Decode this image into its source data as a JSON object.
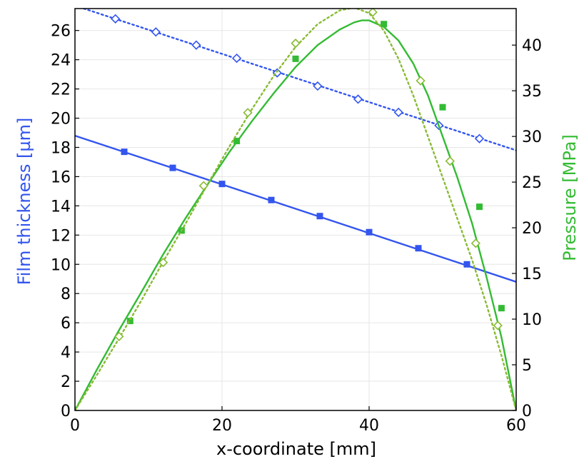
{
  "chart_data": {
    "type": "line",
    "xlabel": "x-coordinate [mm]",
    "ylabel_left": "Film thickness [µm]",
    "ylabel_right": "Pressure [MPa]",
    "xlim": [
      0,
      60
    ],
    "ylim_left": [
      0,
      27.5
    ],
    "ylim_right": [
      0,
      44
    ],
    "x_ticks": [
      "0",
      "20",
      "40",
      "60"
    ],
    "y_left_ticks": [
      "0",
      "2",
      "4",
      "6",
      "8",
      "10",
      "12",
      "14",
      "16",
      "18",
      "20",
      "22",
      "24",
      "26"
    ],
    "y_right_ticks": [
      "0",
      "5",
      "10",
      "15",
      "20",
      "25",
      "30",
      "35",
      "40"
    ],
    "grid": true,
    "colors": {
      "film_thickness": "#3355ee",
      "pressure_solid": "#33bb33",
      "pressure_dotted": "#88bb33"
    },
    "series": [
      {
        "axis": "left",
        "style": "solid",
        "marker": "square",
        "color_key": "film_thickness",
        "line": [
          [
            0,
            18.8
          ],
          [
            60,
            8.8
          ]
        ],
        "markers": [
          [
            6.7,
            17.7
          ],
          [
            13.3,
            16.6
          ],
          [
            20,
            15.5
          ],
          [
            26.7,
            14.4
          ],
          [
            33.3,
            13.3
          ],
          [
            40,
            12.2
          ],
          [
            46.7,
            11.1
          ],
          [
            53.3,
            10.0
          ]
        ]
      },
      {
        "axis": "left",
        "style": "dotted",
        "marker": "diamond",
        "color_key": "film_thickness",
        "line": [
          [
            0,
            27.7
          ],
          [
            60,
            17.8
          ]
        ],
        "markers": [
          [
            5.5,
            26.8
          ],
          [
            11,
            25.9
          ],
          [
            16.5,
            25.0
          ],
          [
            22,
            24.1
          ],
          [
            27.5,
            23.1
          ],
          [
            33,
            22.2
          ],
          [
            38.5,
            21.3
          ],
          [
            44,
            20.4
          ],
          [
            49.5,
            19.5
          ],
          [
            55,
            18.6
          ]
        ]
      },
      {
        "axis": "right",
        "style": "solid",
        "marker": "square",
        "color_key": "pressure_solid",
        "line": [
          [
            0,
            0
          ],
          [
            3,
            4.5
          ],
          [
            6,
            8.8
          ],
          [
            9,
            12.9
          ],
          [
            12,
            17.1
          ],
          [
            15,
            21
          ],
          [
            18,
            24.7
          ],
          [
            21,
            28.3
          ],
          [
            24,
            31.6
          ],
          [
            27,
            34.7
          ],
          [
            30,
            37.6
          ],
          [
            33,
            40
          ],
          [
            36,
            41.7
          ],
          [
            38,
            42.5
          ],
          [
            39,
            42.7
          ],
          [
            40,
            42.7
          ],
          [
            42,
            42
          ],
          [
            44,
            40.5
          ],
          [
            46,
            38
          ],
          [
            48,
            34.5
          ],
          [
            50,
            30
          ],
          [
            52,
            25.5
          ],
          [
            54,
            20.5
          ],
          [
            56,
            14.5
          ],
          [
            58,
            8
          ],
          [
            60,
            0
          ]
        ],
        "markers": [
          [
            7.5,
            9.8
          ],
          [
            14.5,
            19.7
          ],
          [
            22,
            29.5
          ],
          [
            30,
            38.5
          ],
          [
            42,
            42.3
          ],
          [
            50,
            33.2
          ],
          [
            55,
            22.3
          ],
          [
            58,
            11.2
          ]
        ]
      },
      {
        "axis": "right",
        "style": "dotted",
        "marker": "diamond",
        "color_key": "pressure_dotted",
        "line": [
          [
            0,
            0
          ],
          [
            3,
            3.9
          ],
          [
            6,
            7.9
          ],
          [
            9,
            12
          ],
          [
            12,
            16.3
          ],
          [
            15,
            20.4
          ],
          [
            18,
            24.7
          ],
          [
            21,
            28.9
          ],
          [
            24,
            32.9
          ],
          [
            27,
            36.6
          ],
          [
            30,
            39.8
          ],
          [
            33,
            42.3
          ],
          [
            36,
            43.8
          ],
          [
            38,
            44.1
          ],
          [
            40,
            43.5
          ],
          [
            42,
            41.6
          ],
          [
            44,
            38.5
          ],
          [
            46,
            34.5
          ],
          [
            48,
            30
          ],
          [
            50,
            25.5
          ],
          [
            52,
            21
          ],
          [
            54,
            16.5
          ],
          [
            56,
            11.5
          ],
          [
            58,
            6
          ],
          [
            60,
            0
          ]
        ],
        "markers": [
          [
            6,
            8.1
          ],
          [
            12,
            16.2
          ],
          [
            17.5,
            24.6
          ],
          [
            23.5,
            32.6
          ],
          [
            30,
            40.2
          ],
          [
            40.5,
            43.6
          ],
          [
            47,
            36.1
          ],
          [
            51,
            27.3
          ],
          [
            54.5,
            18.3
          ],
          [
            57.5,
            9.3
          ]
        ]
      }
    ]
  }
}
